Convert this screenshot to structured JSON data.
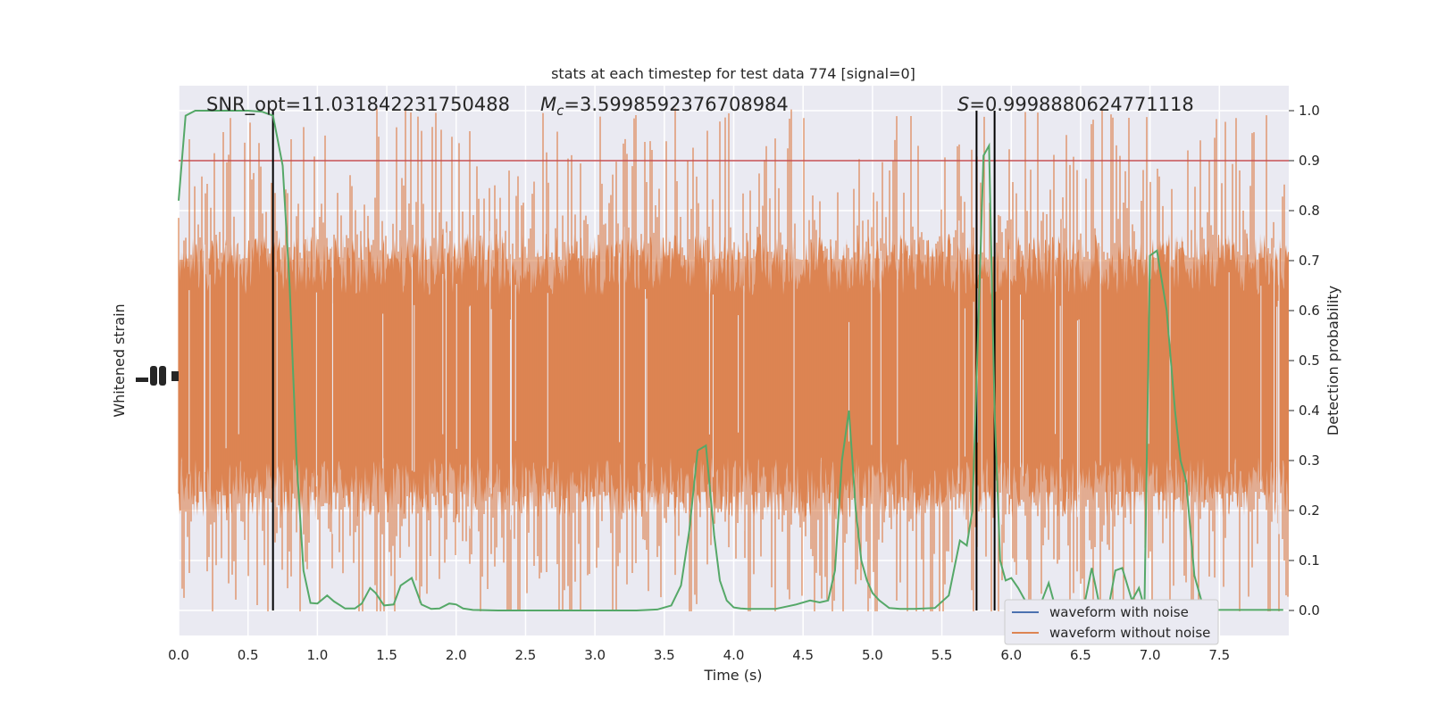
{
  "chart_data": {
    "type": "line",
    "title": "stats at each timestep for test data 774 [signal=0]",
    "annotations": {
      "snr": "SNR_opt=11.031842231750488",
      "mc_symbol": "M",
      "mc_sub": "c",
      "mc_value": "=3.5998592376708984",
      "s_symbol": "S",
      "s_value": "=0.9998880624771118"
    },
    "xlabel": "Time (s)",
    "ylabel_left": "Whitened strain",
    "ylabel_right": "Detection probability",
    "xlim": [
      0.0,
      8.0
    ],
    "ylim_right": [
      -0.05,
      1.05
    ],
    "x_ticks": [
      "0.0",
      "0.5",
      "1.0",
      "1.5",
      "2.0",
      "2.5",
      "3.0",
      "3.5",
      "4.0",
      "4.5",
      "5.0",
      "5.5",
      "6.0",
      "6.5",
      "7.0",
      "7.5"
    ],
    "y_ticks_right": [
      "0.0",
      "0.1",
      "0.2",
      "0.3",
      "0.4",
      "0.5",
      "0.6",
      "0.7",
      "0.8",
      "0.9",
      "1.0"
    ],
    "threshold": 0.9,
    "vertical_lines": [
      0.68,
      5.75,
      5.88
    ],
    "legend": {
      "position": "lower-right",
      "entries": [
        {
          "label": "waveform with noise",
          "color": "#4c72b0"
        },
        {
          "label": "waveform without noise",
          "color": "#dd8452"
        }
      ]
    },
    "colors": {
      "plot_bg": "#eaeaf2",
      "strain": "#dd8452",
      "probability": "#55a868",
      "threshold": "#c44e52",
      "vline": "#000000"
    },
    "series": [
      {
        "name": "Detection probability",
        "x": [
          0.0,
          0.05,
          0.12,
          0.2,
          0.3,
          0.4,
          0.5,
          0.6,
          0.68,
          0.75,
          0.8,
          0.85,
          0.9,
          0.95,
          1.0,
          1.07,
          1.12,
          1.2,
          1.27,
          1.32,
          1.38,
          1.42,
          1.48,
          1.55,
          1.6,
          1.68,
          1.75,
          1.82,
          1.88,
          1.95,
          2.0,
          2.05,
          2.12,
          2.3,
          2.6,
          3.0,
          3.3,
          3.45,
          3.55,
          3.62,
          3.68,
          3.74,
          3.8,
          3.86,
          3.9,
          3.95,
          4.0,
          4.05,
          4.1,
          4.3,
          4.45,
          4.55,
          4.62,
          4.68,
          4.73,
          4.78,
          4.83,
          4.88,
          4.92,
          4.96,
          5.0,
          5.05,
          5.12,
          5.2,
          5.3,
          5.45,
          5.55,
          5.63,
          5.68,
          5.72,
          5.76,
          5.8,
          5.84,
          5.88,
          5.92,
          5.96,
          6.0,
          6.05,
          6.12,
          6.2,
          6.27,
          6.32,
          6.37,
          6.42,
          6.48,
          6.52,
          6.58,
          6.64,
          6.7,
          6.75,
          6.8,
          6.87,
          6.92,
          6.96,
          7.0,
          7.05,
          7.12,
          7.18,
          7.22,
          7.26,
          7.32,
          7.38,
          7.44,
          7.5,
          7.55,
          7.62,
          7.7,
          7.8,
          7.96
        ],
        "values": [
          0.82,
          0.99,
          1.0,
          1.0,
          1.0,
          1.0,
          1.0,
          0.998,
          0.99,
          0.89,
          0.65,
          0.3,
          0.08,
          0.015,
          0.014,
          0.03,
          0.018,
          0.004,
          0.004,
          0.014,
          0.045,
          0.035,
          0.01,
          0.012,
          0.05,
          0.065,
          0.012,
          0.003,
          0.004,
          0.014,
          0.012,
          0.004,
          0.001,
          0.0,
          0.0,
          0.0,
          0.0,
          0.002,
          0.01,
          0.05,
          0.16,
          0.32,
          0.33,
          0.15,
          0.06,
          0.02,
          0.006,
          0.004,
          0.003,
          0.003,
          0.012,
          0.02,
          0.016,
          0.02,
          0.08,
          0.3,
          0.4,
          0.2,
          0.1,
          0.06,
          0.035,
          0.02,
          0.005,
          0.003,
          0.003,
          0.005,
          0.03,
          0.14,
          0.13,
          0.2,
          0.55,
          0.91,
          0.93,
          0.4,
          0.1,
          0.06,
          0.065,
          0.045,
          0.01,
          0.004,
          0.055,
          0.004,
          0.002,
          0.002,
          0.004,
          0.002,
          0.085,
          0.005,
          0.004,
          0.08,
          0.085,
          0.02,
          0.045,
          0.005,
          0.71,
          0.72,
          0.6,
          0.4,
          0.3,
          0.26,
          0.07,
          0.01,
          0.002,
          0.001,
          0.001,
          0.001,
          0.001,
          0.001,
          0.001
        ]
      }
    ]
  }
}
